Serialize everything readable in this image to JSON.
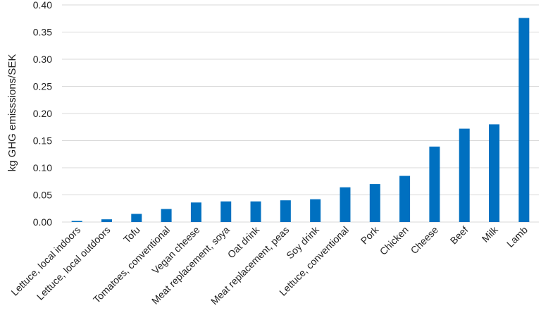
{
  "chart_data": {
    "type": "bar",
    "title": "",
    "xlabel": "",
    "ylabel": "kg GHG emisssions/SEK",
    "ylim": [
      0,
      0.4
    ],
    "yticks": [
      "0.00",
      "0.05",
      "0.10",
      "0.15",
      "0.20",
      "0.25",
      "0.30",
      "0.35",
      "0.40"
    ],
    "grid": true,
    "bar_color": "#0070C0",
    "grid_color": "#d9d9d9",
    "categories": [
      "Lettuce, local indoors",
      "Lettuce, local outdoors",
      "Tofu",
      "Tomatoes, conventional",
      "Vegan cheese",
      "Meat replacement, soya",
      "Oat drink",
      "Meat replacement, peas",
      "Soy drink",
      "Lettuce, conventional",
      "Pork",
      "Chicken",
      "Cheese",
      "Beef",
      "Milk",
      "Lamb"
    ],
    "values": [
      0.002,
      0.005,
      0.015,
      0.024,
      0.036,
      0.038,
      0.038,
      0.04,
      0.042,
      0.064,
      0.07,
      0.085,
      0.139,
      0.172,
      0.18,
      0.376
    ]
  }
}
